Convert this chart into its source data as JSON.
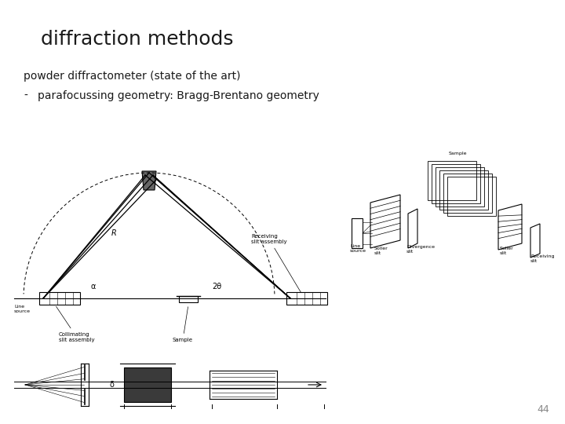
{
  "title": "diffraction methods",
  "subtitle": "powder diffractometer (state of the art)",
  "bullet_dash": "-",
  "bullet": "parafocussing geometry: Bragg-Brentano geometry",
  "page_number": "44",
  "bg_color": "#ffffff",
  "title_color": "#1a1a1a",
  "text_color": "#1a1a1a",
  "page_color": "#888888",
  "title_fontsize": 18,
  "body_fontsize": 10,
  "page_fontsize": 9,
  "diagram_color": "#000000",
  "gray_color": "#555555"
}
